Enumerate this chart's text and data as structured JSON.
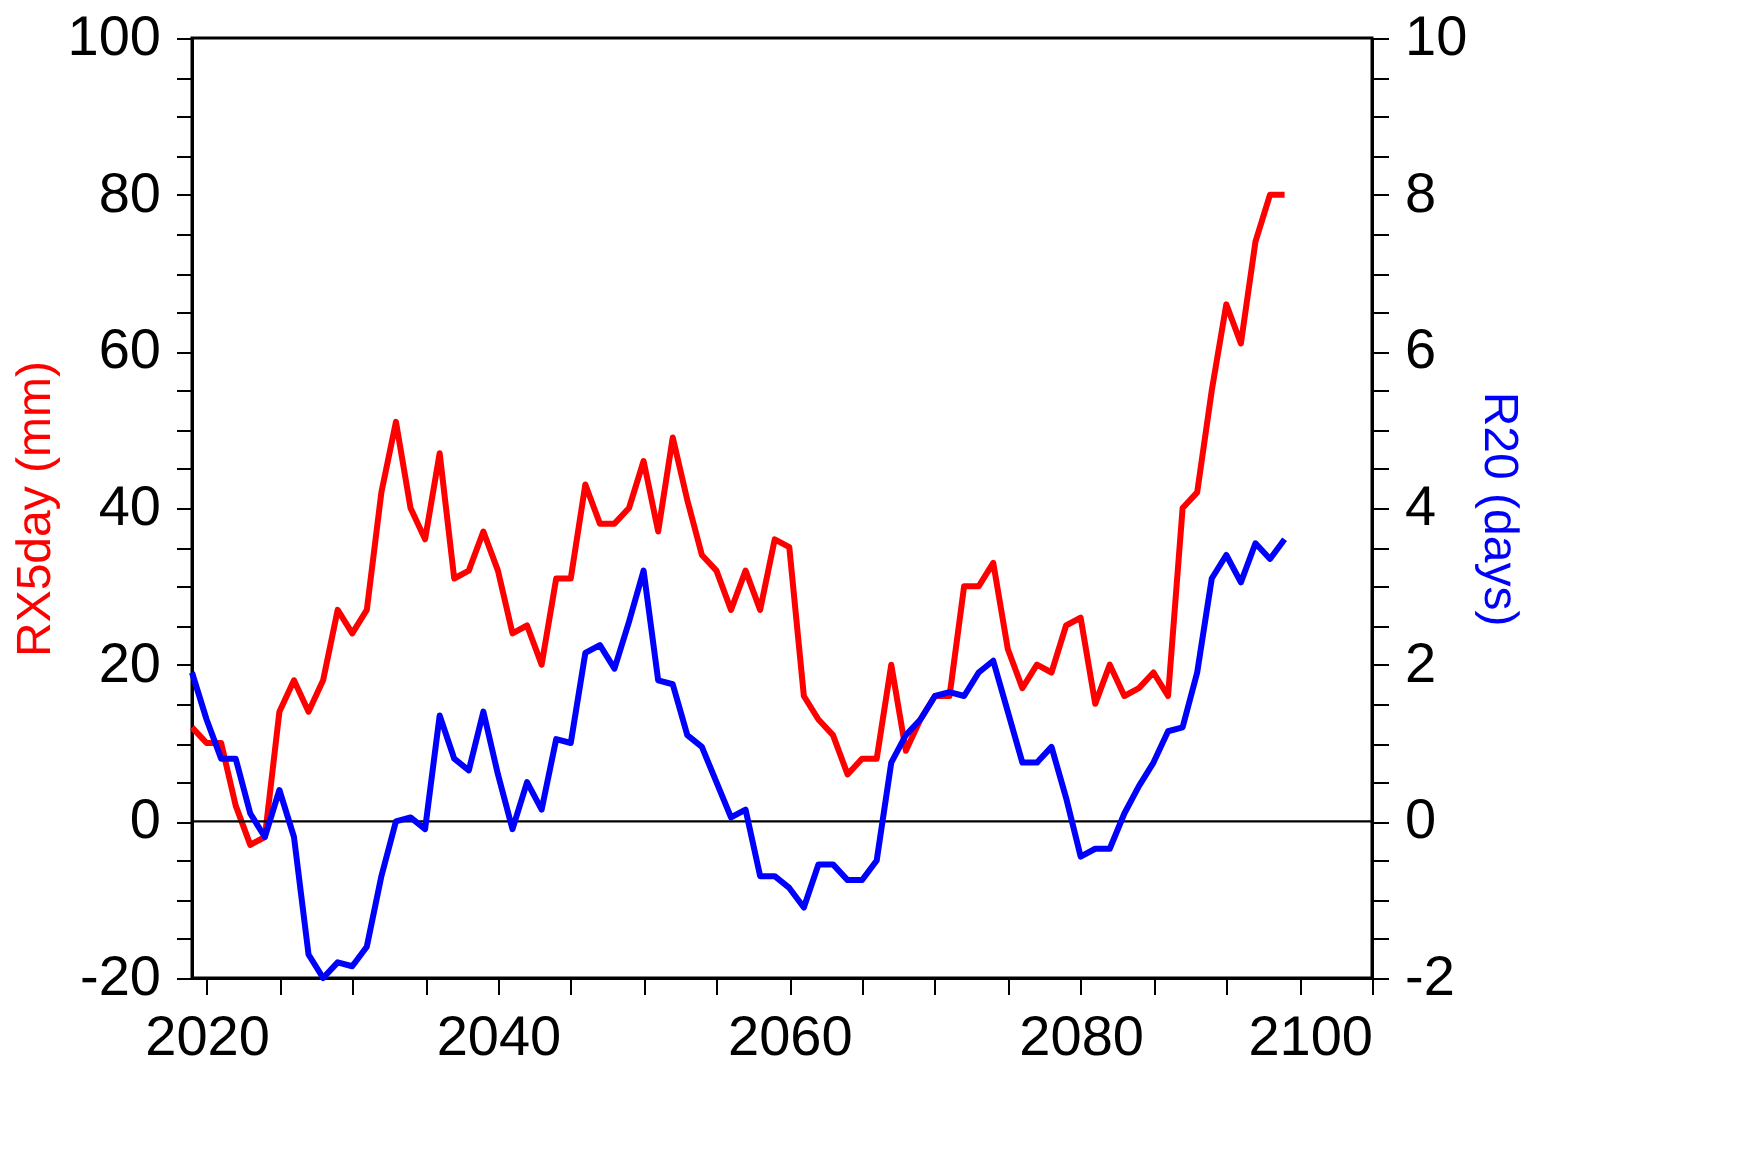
{
  "chart_data": {
    "type": "line",
    "xlabel": null,
    "ylabel": "RX5day (mm)",
    "y2label": "R20 (days)",
    "x": [
      2019,
      2020,
      2021,
      2022,
      2023,
      2024,
      2025,
      2026,
      2027,
      2028,
      2029,
      2030,
      2031,
      2032,
      2033,
      2034,
      2035,
      2036,
      2037,
      2038,
      2039,
      2040,
      2041,
      2042,
      2043,
      2044,
      2045,
      2046,
      2047,
      2048,
      2049,
      2050,
      2051,
      2052,
      2053,
      2054,
      2055,
      2056,
      2057,
      2058,
      2059,
      2060,
      2061,
      2062,
      2063,
      2064,
      2065,
      2066,
      2067,
      2068,
      2069,
      2070,
      2071,
      2072,
      2073,
      2074,
      2075,
      2076,
      2077,
      2078,
      2079,
      2080,
      2081,
      2082,
      2083,
      2084,
      2085,
      2086,
      2087,
      2088,
      2089,
      2090,
      2091,
      2092,
      2093,
      2094
    ],
    "series": [
      {
        "color": "#ff0000",
        "values": [
          12,
          10,
          10,
          2,
          -3,
          -2,
          14,
          18,
          14,
          18,
          27,
          24,
          27,
          42,
          51,
          40,
          36,
          47,
          31,
          32,
          37,
          32,
          24,
          25,
          20,
          31,
          31,
          43,
          38,
          38,
          40,
          46,
          37,
          49,
          41,
          34,
          32,
          27,
          32,
          27,
          36,
          35,
          16,
          13,
          11,
          6,
          8,
          8,
          20,
          9,
          13,
          16,
          16,
          30,
          30,
          33,
          22,
          17,
          20,
          19,
          25,
          26,
          15,
          20,
          16,
          17,
          19,
          16,
          40,
          42,
          55,
          66,
          61,
          74,
          80,
          80
        ]
      },
      {
        "color": "#0000ff",
        "axis": "y2",
        "values": [
          1.9,
          1.3,
          0.8,
          0.8,
          0.1,
          -0.2,
          0.4,
          -0.2,
          -1.7,
          -2.0,
          -1.8,
          -1.85,
          -1.6,
          -0.7,
          0,
          0.05,
          -0.1,
          1.35,
          0.8,
          0.65,
          1.4,
          0.6,
          -0.1,
          0.5,
          0.15,
          1.05,
          1.0,
          2.15,
          2.25,
          1.95,
          2.55,
          3.2,
          1.8,
          1.75,
          1.1,
          0.95,
          0.5,
          0.05,
          0.15,
          -0.7,
          -0.7,
          -0.85,
          -1.1,
          -0.55,
          -0.55,
          -0.75,
          -0.75,
          -0.5,
          0.75,
          1.1,
          1.3,
          1.6,
          1.65,
          1.6,
          1.9,
          2.05,
          1.4,
          0.75,
          0.75,
          0.95,
          0.3,
          -0.45,
          -0.35,
          -0.35,
          0.1,
          0.45,
          0.75,
          1.15,
          1.2,
          1.9,
          3.1,
          3.4,
          3.05,
          3.55,
          3.35,
          3.6
        ]
      }
    ],
    "xlim": [
      2019,
      2100
    ],
    "xticks": [
      {
        "value": 2020,
        "label": "2020"
      },
      {
        "value": 2025,
        "label": null
      },
      {
        "value": 2030,
        "label": null
      },
      {
        "value": 2035,
        "label": null
      },
      {
        "value": 2040,
        "label": "2040"
      },
      {
        "value": 2045,
        "label": null
      },
      {
        "value": 2050,
        "label": null
      },
      {
        "value": 2055,
        "label": null
      },
      {
        "value": 2060,
        "label": "2060"
      },
      {
        "value": 2065,
        "label": null
      },
      {
        "value": 2070,
        "label": null
      },
      {
        "value": 2075,
        "label": null
      },
      {
        "value": 2080,
        "label": "2080"
      },
      {
        "value": 2085,
        "label": null
      },
      {
        "value": 2090,
        "label": null
      },
      {
        "value": 2095,
        "label": null
      },
      {
        "value": 2100,
        "label": "2100"
      }
    ],
    "ylim": [
      -20,
      100
    ],
    "yticks": [
      -20,
      {
        "value": -15,
        "label": null
      },
      {
        "value": -10,
        "label": null
      },
      {
        "value": -5,
        "label": null
      },
      0,
      {
        "value": 5,
        "label": null
      },
      {
        "value": 10,
        "label": null
      },
      {
        "value": 15,
        "label": null
      },
      20,
      {
        "value": 25,
        "label": null
      },
      {
        "value": 30,
        "label": null
      },
      {
        "value": 35,
        "label": null
      },
      40,
      {
        "value": 45,
        "label": null
      },
      {
        "value": 50,
        "label": null
      },
      {
        "value": 55,
        "label": null
      },
      60,
      {
        "value": 65,
        "label": null
      },
      {
        "value": 70,
        "label": null
      },
      {
        "value": 75,
        "label": null
      },
      80,
      {
        "value": 85,
        "label": null
      },
      {
        "value": 90,
        "label": null
      },
      {
        "value": 95,
        "label": null
      },
      100
    ],
    "y2lim": [
      -2,
      10
    ],
    "y2ticks": [
      -2,
      {
        "value": -1.5,
        "label": null
      },
      {
        "value": -1,
        "label": null
      },
      {
        "value": -0.5,
        "label": null
      },
      0,
      {
        "value": 0.5,
        "label": null
      },
      {
        "value": 1,
        "label": null
      },
      {
        "value": 1.5,
        "label": null
      },
      2,
      {
        "value": 2.5,
        "label": null
      },
      {
        "value": 3,
        "label": null
      },
      {
        "value": 3.5,
        "label": null
      },
      4,
      {
        "value": 4.5,
        "label": null
      },
      {
        "value": 5,
        "label": null
      },
      {
        "value": 5.5,
        "label": null
      },
      6,
      {
        "value": 6.5,
        "label": null
      },
      {
        "value": 7,
        "label": null
      },
      {
        "value": 7.5,
        "label": null
      },
      8,
      {
        "value": 8.5,
        "label": null
      },
      {
        "value": 9,
        "label": null
      },
      {
        "value": 9.5,
        "label": null
      },
      10
    ],
    "ref_lines": [
      {
        "axis": "y",
        "value": 0,
        "color": "#000000"
      }
    ],
    "grid": false,
    "legend": false,
    "line_style": "solid",
    "marker": "none"
  }
}
